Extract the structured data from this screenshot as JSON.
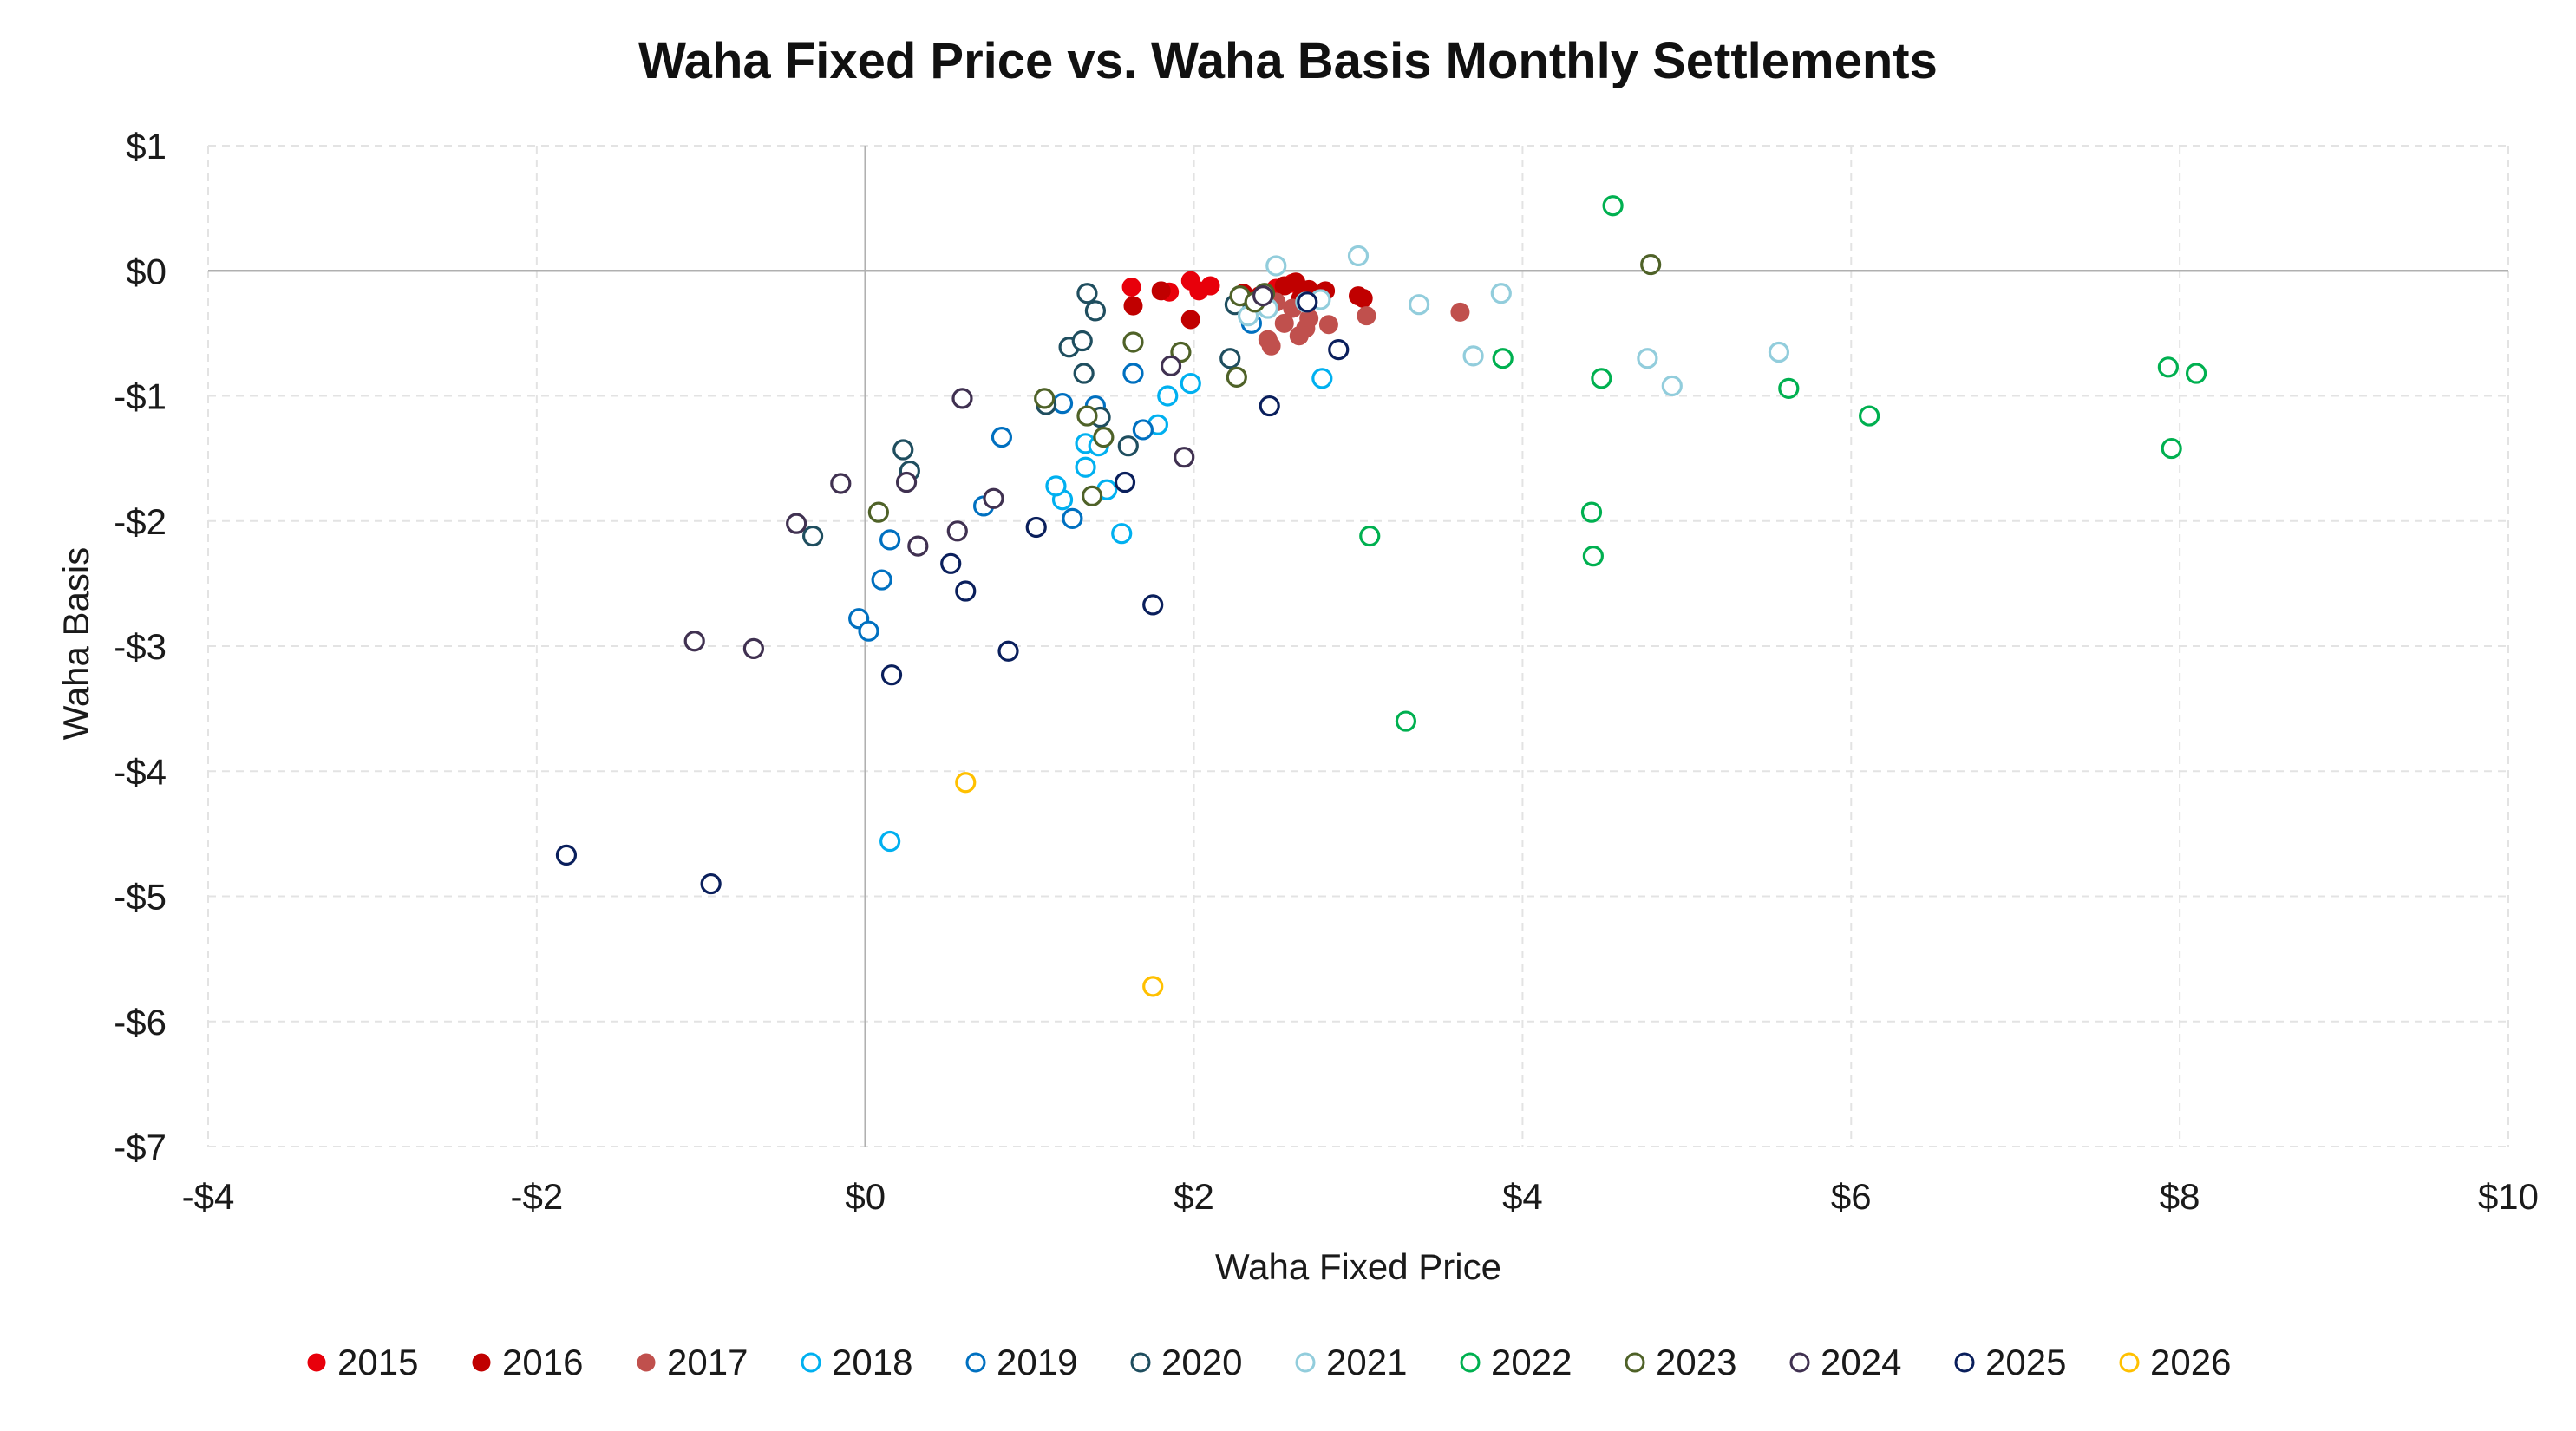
{
  "chart_data": {
    "type": "scatter",
    "title": "Waha Fixed Price vs. Waha Basis Monthly Settlements",
    "xlabel": "Waha Fixed Price",
    "ylabel": "Waha Basis",
    "xlim": [
      -4,
      10
    ],
    "ylim": [
      -7,
      1
    ],
    "x_ticks": [
      -4,
      -2,
      0,
      2,
      4,
      6,
      8,
      10
    ],
    "y_ticks": [
      1,
      0,
      -1,
      -2,
      -3,
      -4,
      -5,
      -6,
      -7
    ],
    "x_tick_labels": [
      "-$4",
      "-$2",
      "$0",
      "$2",
      "$4",
      "$6",
      "$8",
      "$10"
    ],
    "y_tick_labels": [
      "$1",
      "$0",
      "-$1",
      "-$2",
      "-$3",
      "-$4",
      "-$5",
      "-$6",
      "-$7"
    ],
    "grid": "dashed-light",
    "legend_position": "bottom",
    "series": [
      {
        "name": "2015",
        "color": "#e8000b",
        "marker": "filled",
        "points": [
          [
            1.98,
            -0.08
          ],
          [
            2.1,
            -0.12
          ],
          [
            2.03,
            -0.16
          ],
          [
            1.62,
            -0.13
          ],
          [
            1.85,
            -0.17
          ],
          [
            2.6,
            -0.1
          ],
          [
            2.5,
            -0.14
          ]
        ]
      },
      {
        "name": "2016",
        "color": "#c00000",
        "marker": "filled",
        "points": [
          [
            1.63,
            -0.28
          ],
          [
            1.8,
            -0.16
          ],
          [
            1.98,
            -0.39
          ],
          [
            2.55,
            -0.12
          ],
          [
            2.62,
            -0.09
          ],
          [
            2.7,
            -0.15
          ],
          [
            2.8,
            -0.16
          ],
          [
            3.0,
            -0.2
          ],
          [
            3.03,
            -0.22
          ],
          [
            2.4,
            -0.2
          ],
          [
            2.3,
            -0.18
          ],
          [
            2.65,
            -0.22
          ]
        ]
      },
      {
        "name": "2017",
        "color": "#c0504d",
        "marker": "filled",
        "points": [
          [
            2.55,
            -0.42
          ],
          [
            2.64,
            -0.52
          ],
          [
            2.68,
            -0.46
          ],
          [
            2.45,
            -0.55
          ],
          [
            2.47,
            -0.6
          ],
          [
            2.82,
            -0.43
          ],
          [
            3.05,
            -0.36
          ],
          [
            3.62,
            -0.33
          ],
          [
            2.7,
            -0.38
          ],
          [
            2.6,
            -0.3
          ],
          [
            2.5,
            -0.25
          ],
          [
            2.35,
            -0.28
          ]
        ]
      },
      {
        "name": "2018",
        "color": "#00b0f0",
        "marker": "hollow",
        "points": [
          [
            0.15,
            -4.56
          ],
          [
            1.34,
            -1.38
          ],
          [
            1.34,
            -1.57
          ],
          [
            1.2,
            -1.83
          ],
          [
            1.42,
            -1.4
          ],
          [
            1.78,
            -1.23
          ],
          [
            1.84,
            -1.0
          ],
          [
            1.98,
            -0.9
          ],
          [
            2.78,
            -0.86
          ],
          [
            1.56,
            -2.1
          ],
          [
            1.47,
            -1.75
          ],
          [
            1.16,
            -1.72
          ]
        ]
      },
      {
        "name": "2019",
        "color": "#0070c0",
        "marker": "hollow",
        "points": [
          [
            -0.04,
            -2.78
          ],
          [
            0.02,
            -2.88
          ],
          [
            0.1,
            -2.47
          ],
          [
            0.15,
            -2.15
          ],
          [
            0.72,
            -1.88
          ],
          [
            0.83,
            -1.33
          ],
          [
            1.2,
            -1.06
          ],
          [
            1.4,
            -1.08
          ],
          [
            1.63,
            -0.82
          ],
          [
            1.69,
            -1.27
          ],
          [
            2.35,
            -0.42
          ],
          [
            1.26,
            -1.98
          ]
        ]
      },
      {
        "name": "2020",
        "color": "#1f4e5f",
        "marker": "hollow",
        "points": [
          [
            -0.32,
            -2.12
          ],
          [
            0.23,
            -1.43
          ],
          [
            0.27,
            -1.6
          ],
          [
            1.1,
            -1.07
          ],
          [
            1.24,
            -0.61
          ],
          [
            1.32,
            -0.56
          ],
          [
            1.33,
            -0.82
          ],
          [
            1.35,
            -0.18
          ],
          [
            1.4,
            -0.32
          ],
          [
            1.43,
            -1.17
          ],
          [
            2.22,
            -0.7
          ],
          [
            2.25,
            -0.27
          ],
          [
            1.6,
            -1.4
          ]
        ]
      },
      {
        "name": "2021",
        "color": "#92cddc",
        "marker": "hollow",
        "points": [
          [
            2.33,
            -0.36
          ],
          [
            2.5,
            0.04
          ],
          [
            2.77,
            -0.23
          ],
          [
            3.0,
            0.12
          ],
          [
            3.37,
            -0.27
          ],
          [
            3.7,
            -0.68
          ],
          [
            3.87,
            -0.18
          ],
          [
            4.76,
            -0.7
          ],
          [
            4.91,
            -0.92
          ],
          [
            5.56,
            -0.65
          ],
          [
            2.45,
            -0.3
          ],
          [
            2.68,
            -0.25
          ]
        ]
      },
      {
        "name": "2022",
        "color": "#00b050",
        "marker": "hollow",
        "points": [
          [
            3.07,
            -2.12
          ],
          [
            3.29,
            -3.6
          ],
          [
            3.88,
            -0.7
          ],
          [
            4.42,
            -1.93
          ],
          [
            4.43,
            -2.28
          ],
          [
            4.48,
            -0.86
          ],
          [
            4.55,
            0.52
          ],
          [
            5.62,
            -0.94
          ],
          [
            6.11,
            -1.16
          ],
          [
            7.93,
            -0.77
          ],
          [
            8.1,
            -0.82
          ],
          [
            7.95,
            -1.42
          ]
        ]
      },
      {
        "name": "2023",
        "color": "#4f6228",
        "marker": "hollow",
        "points": [
          [
            0.08,
            -1.93
          ],
          [
            1.09,
            -1.02
          ],
          [
            1.35,
            -1.16
          ],
          [
            1.38,
            -1.8
          ],
          [
            1.45,
            -1.33
          ],
          [
            1.63,
            -0.57
          ],
          [
            1.92,
            -0.65
          ],
          [
            2.26,
            -0.85
          ],
          [
            2.28,
            -0.2
          ],
          [
            2.37,
            -0.25
          ],
          [
            2.43,
            -0.18
          ],
          [
            4.78,
            0.05
          ]
        ]
      },
      {
        "name": "2024",
        "color": "#403151",
        "marker": "hollow",
        "points": [
          [
            -1.04,
            -2.96
          ],
          [
            -0.68,
            -3.02
          ],
          [
            -0.42,
            -2.02
          ],
          [
            -0.15,
            -1.7
          ],
          [
            0.32,
            -2.2
          ],
          [
            0.25,
            -1.69
          ],
          [
            0.56,
            -2.08
          ],
          [
            0.59,
            -1.02
          ],
          [
            0.78,
            -1.82
          ],
          [
            1.86,
            -0.76
          ],
          [
            1.94,
            -1.49
          ],
          [
            2.42,
            -0.2
          ]
        ]
      },
      {
        "name": "2025",
        "color": "#0a1f5c",
        "marker": "hollow",
        "points": [
          [
            -1.82,
            -4.67
          ],
          [
            -0.94,
            -4.9
          ],
          [
            0.16,
            -3.23
          ],
          [
            0.52,
            -2.34
          ],
          [
            0.61,
            -2.56
          ],
          [
            0.87,
            -3.04
          ],
          [
            1.04,
            -2.05
          ],
          [
            1.58,
            -1.69
          ],
          [
            1.75,
            -2.67
          ],
          [
            2.46,
            -1.08
          ],
          [
            2.88,
            -0.63
          ],
          [
            2.69,
            -0.25
          ]
        ]
      },
      {
        "name": "2026",
        "color": "#ffc000",
        "marker": "hollow",
        "points": [
          [
            0.61,
            -4.09
          ],
          [
            1.75,
            -5.72
          ]
        ]
      }
    ]
  }
}
